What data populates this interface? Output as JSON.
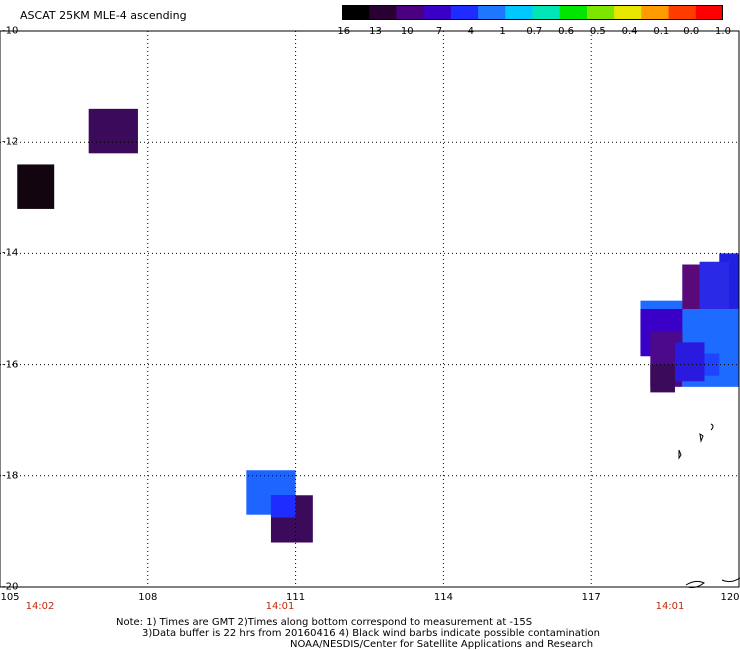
{
  "title": "ASCAT 25KM MLE-4 ascending",
  "colorbar": {
    "labels": [
      "-16",
      "-13",
      "-10",
      "-7",
      "-4",
      "-1",
      "-0.7",
      "-0.6",
      "-0.5",
      "-0.4",
      "-0.1",
      "0.0",
      "1.0"
    ],
    "colors": [
      "#000000",
      "#2a0032",
      "#4b0082",
      "#3a00c8",
      "#1e2cff",
      "#1e78ff",
      "#00c8ff",
      "#00e6b4",
      "#00e600",
      "#7de600",
      "#e6e600",
      "#ff9a00",
      "#ff3c00",
      "#ff0000"
    ]
  },
  "map": {
    "lon_range": [
      105,
      120
    ],
    "lat_range": [
      -10,
      -20
    ],
    "lon_ticks": [
      "105",
      "108",
      "111",
      "114",
      "117",
      "120"
    ],
    "lat_ticks": [
      "-10",
      "-12",
      "-14",
      "-16",
      "-18",
      "-20"
    ],
    "times": [
      "14:02",
      "14:01",
      "14:01"
    ],
    "grid": "dotted",
    "colors": {
      "time_label": "#c0280a",
      "grid": "#000000"
    }
  },
  "cells": [
    {
      "lon": 106.8,
      "lat": -11.4,
      "lon2": 107.8,
      "lat2": -12.2,
      "color": "#3c0a5a"
    },
    {
      "lon": 105.35,
      "lat": -12.4,
      "lon2": 106.1,
      "lat2": -13.2,
      "color": "#120510"
    },
    {
      "lon": 110.0,
      "lat": -17.9,
      "lon2": 111.0,
      "lat2": -18.7,
      "color": "#1e64ff"
    },
    {
      "lon": 110.5,
      "lat": -18.35,
      "lon2": 111.35,
      "lat2": -19.2,
      "color": "#3c0a5a"
    },
    {
      "lon": 110.5,
      "lat": -18.35,
      "lon2": 111.0,
      "lat2": -18.75,
      "color": "#1e2cff"
    },
    {
      "lon": 118.85,
      "lat": -14.2,
      "lon2": 120.0,
      "lat2": -16.4,
      "color": "#1e6cff"
    },
    {
      "lon": 118.0,
      "lat": -14.85,
      "lon2": 118.9,
      "lat2": -15.8,
      "color": "#1e6cff"
    },
    {
      "lon": 119.6,
      "lat": -14.0,
      "lon2": 120.0,
      "lat2": -15.0,
      "color": "#2020e0"
    },
    {
      "lon": 119.2,
      "lat": -14.15,
      "lon2": 119.8,
      "lat2": -15.0,
      "color": "#2a2ae6"
    },
    {
      "lon": 118.85,
      "lat": -14.2,
      "lon2": 119.2,
      "lat2": -15.0,
      "color": "#5a0a78"
    },
    {
      "lon": 118.0,
      "lat": -15.0,
      "lon2": 118.85,
      "lat2": -15.85,
      "color": "#3a00c8"
    },
    {
      "lon": 118.2,
      "lat": -15.4,
      "lon2": 118.85,
      "lat2": -16.4,
      "color": "#4b0a8c"
    },
    {
      "lon": 118.2,
      "lat": -16.0,
      "lon2": 118.7,
      "lat2": -16.5,
      "color": "#3c0a5a"
    },
    {
      "lon": 118.7,
      "lat": -15.6,
      "lon2": 119.3,
      "lat2": -16.3,
      "color": "#2a1ae0"
    },
    {
      "lon": 119.3,
      "lat": -15.8,
      "lon2": 119.6,
      "lat2": -16.2,
      "color": "#1e44ff"
    }
  ],
  "notes": {
    "line1": "Note: 1) Times are GMT 2)Times along bottom correspond to measurement at -15S",
    "line2": "3)Data buffer is 22 hrs from 20160416 4) Black wind barbs indicate possible contamination",
    "line3": "NOAA/NESDIS/Center for Satellite Applications and Research"
  }
}
